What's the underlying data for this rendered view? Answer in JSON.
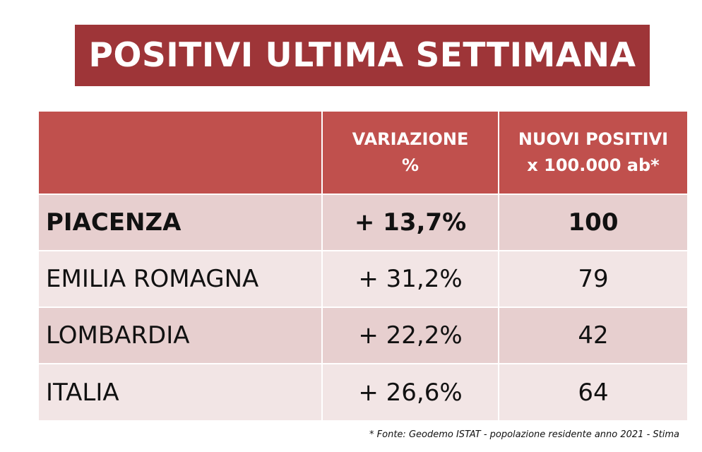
{
  "title": "POSITIVI ULTIMA SETTIMANA",
  "table": {
    "header": {
      "col0": "",
      "col1_line1": "VARIAZIONE",
      "col1_line2": "%",
      "col2_line1": "NUOVI POSITIVI",
      "col2_line2": "x 100.000 ab*"
    },
    "rows": [
      {
        "name": "PIACENZA",
        "variazione": "+ 13,7%",
        "nuovi": "100"
      },
      {
        "name": "EMILIA ROMAGNA",
        "variazione": "+ 31,2%",
        "nuovi": "79"
      },
      {
        "name": "LOMBARDIA",
        "variazione": "+ 22,2%",
        "nuovi": "42"
      },
      {
        "name": "ITALIA",
        "variazione": "+ 26,6%",
        "nuovi": "64"
      }
    ]
  },
  "footnote": "* Fonte: Geodemo ISTAT - popolazione residente anno 2021 - Stima",
  "colors": {
    "title_bg": "#9e3538",
    "header_bg": "#c0504d",
    "row_dark": "#e7cfcf",
    "row_light": "#f2e5e5"
  }
}
